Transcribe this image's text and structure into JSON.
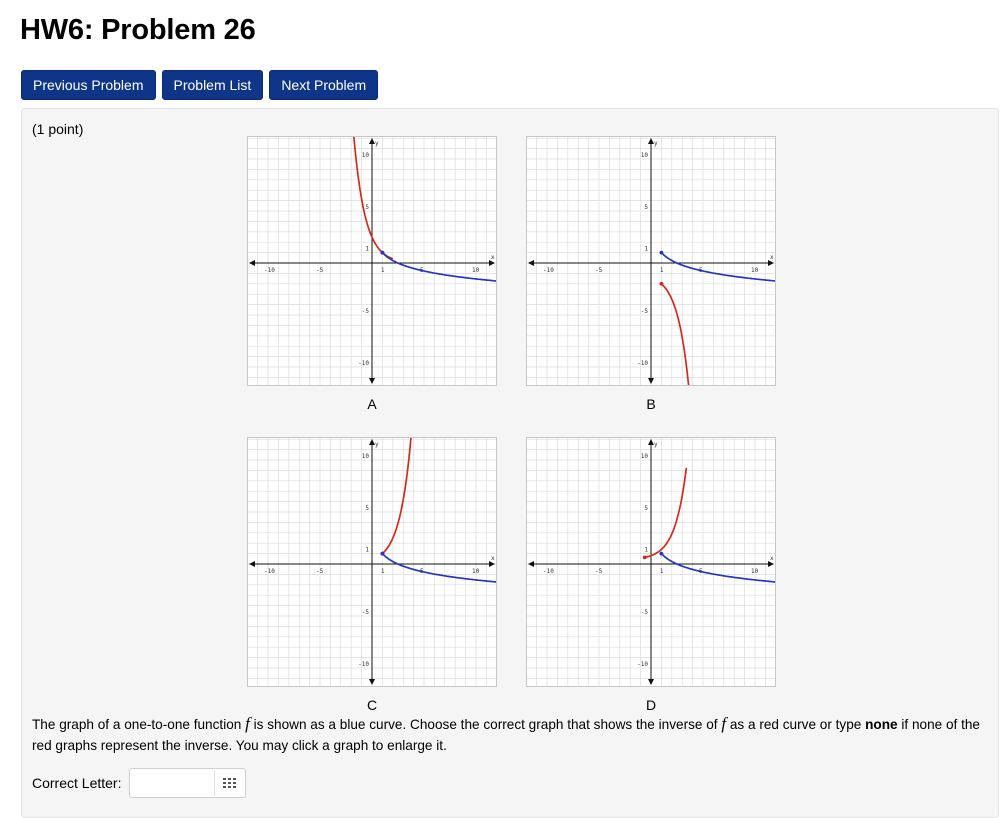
{
  "page": {
    "title": "HW6: Problem 26"
  },
  "nav": {
    "previous": "Previous Problem",
    "list": "Problem List",
    "next": "Next Problem"
  },
  "problem": {
    "points": "(1 point)",
    "graphs": [
      {
        "label": "A"
      },
      {
        "label": "B"
      },
      {
        "label": "C"
      },
      {
        "label": "D"
      }
    ],
    "instructions": {
      "t1": "The graph of a one-to-one function ",
      "f1": "f",
      "t2": " is shown as a blue curve. Choose the correct graph that shows the inverse of ",
      "f2": "f",
      "t3": " as a red curve or type ",
      "bold": "none",
      "t4": " if none of the red graphs represent the inverse. You may click a graph to enlarge it."
    },
    "answer": {
      "label": "Correct Letter:",
      "value": ""
    }
  },
  "axes": {
    "x_ticks": [
      "-10",
      "-5",
      "1",
      "5",
      "10"
    ],
    "y_ticks": [
      "10",
      "5",
      "1",
      "-5",
      "-10"
    ],
    "x_name": "x",
    "y_name": "y"
  },
  "colors": {
    "blue_curve": "#2436c8",
    "red_curve": "#d42a1e",
    "nav_button": "#0f3589",
    "panel": "#f5f5f5"
  },
  "icons": {
    "answer_tool": "grid-icon"
  }
}
